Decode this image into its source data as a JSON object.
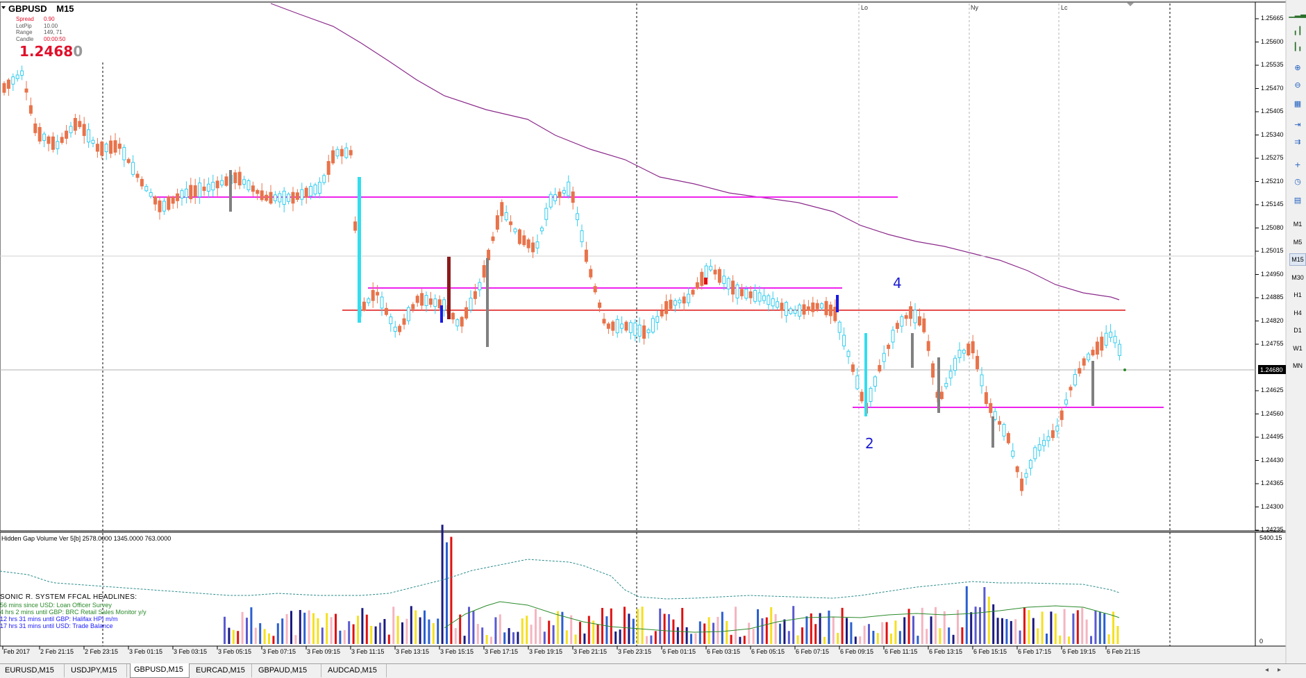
{
  "symbol": "GBPUSD",
  "timeframe": "M15",
  "info_panel": [
    {
      "label": "Spread",
      "value": "0.90"
    },
    {
      "label": "LotPip",
      "value": "10.00"
    },
    {
      "label": "Range",
      "value": "149, 71"
    },
    {
      "label": "Candle",
      "value": "00:00:50"
    }
  ],
  "big_price": {
    "main": "1.2468",
    "last": "0"
  },
  "session_labels": [
    "Lo",
    "Ny",
    "Lc"
  ],
  "wave_labels": [
    "4",
    "2"
  ],
  "price_axis": [
    "1.25665",
    "1.25600",
    "1.25535",
    "1.25470",
    "1.25405",
    "1.25340",
    "1.25275",
    "1.25210",
    "1.25145",
    "1.25080",
    "1.25015",
    "1.24950",
    "1.24885",
    "1.24820",
    "1.24755",
    "1.24680",
    "1.24625",
    "1.24560",
    "1.24495",
    "1.24430",
    "1.24365",
    "1.24300",
    "1.24235"
  ],
  "current_price_tag": "1.24680",
  "indicator": {
    "title": "Hidden Gap Volume Ver 5[b] 2578.0000 1345.0000 763.0000",
    "max_label": "5400.15",
    "min_label": "0"
  },
  "headlines": {
    "title": "SONIC R. SYSTEM  FFCAL HEADLINES:",
    "items": [
      {
        "text": "56 mins since USD: Loan Officer Survey",
        "color": "#2a8a2a"
      },
      {
        "text": "4 hrs 2 mins until GBP: BRC Retail Sales Monitor y/y",
        "color": "#2a8a2a"
      },
      {
        "text": "12 hrs 31 mins until GBP: Halifax HPI m/m",
        "color": "#1a1aff"
      },
      {
        "text": "17 hrs 31 mins until USD: Trade Balance",
        "color": "#1a1aff"
      }
    ]
  },
  "time_axis": [
    "Feb 2017",
    "2 Feb 21:15",
    "2 Feb 23:15",
    "3 Feb 01:15",
    "3 Feb 03:15",
    "3 Feb 05:15",
    "3 Feb 07:15",
    "3 Feb 09:15",
    "3 Feb 11:15",
    "3 Feb 13:15",
    "3 Feb 15:15",
    "3 Feb 17:15",
    "3 Feb 19:15",
    "3 Feb 21:15",
    "3 Feb 23:15",
    "6 Feb 01:15",
    "6 Feb 03:15",
    "6 Feb 05:15",
    "6 Feb 07:15",
    "6 Feb 09:15",
    "6 Feb 11:15",
    "6 Feb 13:15",
    "6 Feb 15:15",
    "6 Feb 17:15",
    "6 Feb 19:15",
    "6 Feb 21:15"
  ],
  "timeframes": [
    "M1",
    "M5",
    "M15",
    "M30",
    "H1",
    "H4",
    "D1",
    "W1",
    "MN"
  ],
  "active_timeframe": "M15",
  "tabs": [
    "EURUSD,M15",
    "USDJPY,M15",
    "GBPUSD,M15",
    "EURCAD,M15",
    "GBPAUD,M15",
    "AUDCAD,M15"
  ],
  "active_tab": "GBPUSD,M15",
  "toolbar_icons": [
    "chart-line-icon",
    "chart-bar-icon",
    "chart-candle-icon",
    "zoom-in-icon",
    "zoom-out-icon",
    "tile-windows-icon",
    "chart-shift-icon",
    "autoscroll-icon",
    "indicators-icon",
    "clock-icon",
    "templates-icon"
  ],
  "colors": {
    "bull": "#33ccee",
    "bear": "#e8734a",
    "ma": "#8b2a8b",
    "hline_magenta": "#ee22ee",
    "hline_red": "#dd1111",
    "wave_label": "#1a1ad0"
  },
  "chart_data": {
    "type": "candlestick",
    "price_range": [
      1.2424,
      1.257
    ],
    "levels": [
      1.25178,
      1.24913,
      1.24845,
      1.24566
    ],
    "current_price": 1.2468
  }
}
